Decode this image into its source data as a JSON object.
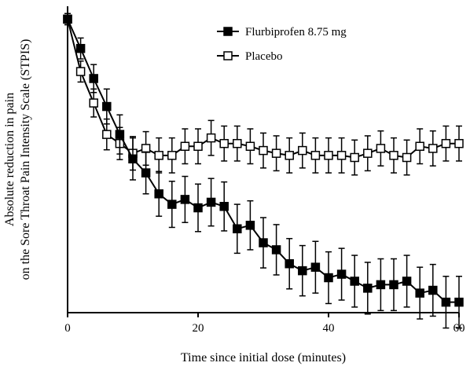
{
  "chart_data": {
    "type": "line",
    "title": "",
    "xlabel": "Time since initial dose (minutes)",
    "ylabel_line1": "Absolute reduction in pain",
    "ylabel_line2": "on the Sore Throat Pain Intensity Scale (STPIS)",
    "xlim": [
      0,
      60
    ],
    "ylim": [
      -4.2,
      0.15
    ],
    "x_ticks": [
      0,
      20,
      40,
      60
    ],
    "y_ticks_labeled": false,
    "grid": false,
    "legend_position": "top-right",
    "x": [
      0,
      2,
      4,
      6,
      8,
      10,
      12,
      14,
      16,
      18,
      20,
      22,
      24,
      26,
      28,
      30,
      32,
      34,
      36,
      38,
      40,
      42,
      44,
      46,
      48,
      50,
      52,
      54,
      56,
      58,
      60
    ],
    "series": [
      {
        "name": "Flurbiprofen 8.75 mg",
        "marker": "filled-square",
        "color": "#000000",
        "values": [
          0,
          -0.42,
          -0.85,
          -1.25,
          -1.65,
          -2.0,
          -2.2,
          -2.5,
          -2.65,
          -2.58,
          -2.7,
          -2.62,
          -2.68,
          -3.0,
          -2.95,
          -3.2,
          -3.3,
          -3.5,
          -3.6,
          -3.55,
          -3.7,
          -3.65,
          -3.75,
          -3.85,
          -3.8,
          -3.8,
          -3.75,
          -3.92,
          -3.88,
          -4.05,
          -4.05
        ],
        "error": [
          0.08,
          0.15,
          0.2,
          0.25,
          0.28,
          0.3,
          0.3,
          0.32,
          0.33,
          0.33,
          0.34,
          0.34,
          0.35,
          0.35,
          0.35,
          0.36,
          0.36,
          0.36,
          0.36,
          0.37,
          0.37,
          0.37,
          0.37,
          0.37,
          0.37,
          0.37,
          0.37,
          0.37,
          0.37,
          0.37,
          0.37
        ]
      },
      {
        "name": "Placebo",
        "marker": "open-square",
        "color": "#000000",
        "values": [
          0,
          -0.75,
          -1.2,
          -1.65,
          -1.78,
          -1.92,
          -1.85,
          -1.95,
          -1.95,
          -1.82,
          -1.82,
          -1.7,
          -1.78,
          -1.78,
          -1.82,
          -1.88,
          -1.92,
          -1.95,
          -1.88,
          -1.95,
          -1.95,
          -1.95,
          -1.98,
          -1.92,
          -1.85,
          -1.95,
          -1.98,
          -1.82,
          -1.85,
          -1.78,
          -1.78
        ],
        "error": [
          0.08,
          0.15,
          0.2,
          0.22,
          0.23,
          0.24,
          0.24,
          0.25,
          0.25,
          0.25,
          0.25,
          0.25,
          0.25,
          0.25,
          0.25,
          0.25,
          0.25,
          0.25,
          0.25,
          0.25,
          0.25,
          0.25,
          0.25,
          0.25,
          0.25,
          0.25,
          0.25,
          0.25,
          0.25,
          0.25,
          0.25
        ]
      }
    ]
  }
}
